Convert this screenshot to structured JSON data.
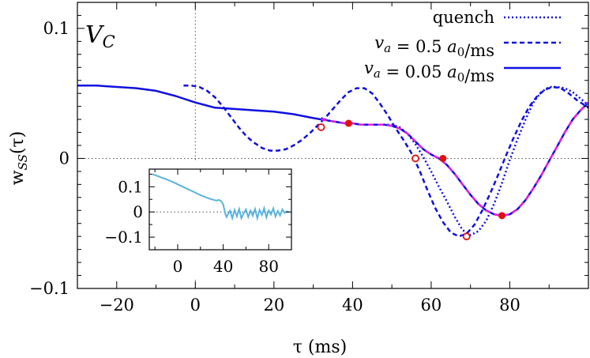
{
  "chart_data": {
    "type": "line",
    "panel_label": "V_C",
    "xlabel": "τ (ms)",
    "ylabel": "w_SS(τ)",
    "xlim": [
      -30,
      100
    ],
    "ylim": [
      -0.1,
      0.12
    ],
    "xticks": [
      -20,
      0,
      20,
      40,
      60,
      80
    ],
    "xtick_labels": [
      "−20",
      "0",
      "20",
      "40",
      "60",
      "80"
    ],
    "yticks": [
      -0.1,
      0,
      0.1
    ],
    "ytick_labels": [
      "−0.1",
      "0",
      "0.1"
    ],
    "reference_lines": {
      "x": 0,
      "y": 0,
      "style": "dotted"
    },
    "legend_position": "top-right",
    "colors": {
      "series": "#1010e0",
      "overlay": "#e020e0",
      "marker": "#e01010",
      "inset": "#5ab4e0"
    },
    "series": [
      {
        "name": "quench",
        "style": "dotted",
        "x": [
          32,
          34,
          36,
          38,
          40,
          42,
          44,
          46,
          48,
          50,
          52,
          54,
          56,
          58,
          60,
          62,
          64,
          66,
          68,
          70,
          72,
          74,
          76,
          78,
          80,
          82,
          84,
          86,
          88,
          90,
          92,
          94,
          96,
          98,
          100
        ],
        "y": [
          0.031,
          0.029,
          0.028,
          0.027,
          0.027,
          0.026,
          0.026,
          0.026,
          0.026,
          0.026,
          0.024,
          0.019,
          0.011,
          0.001,
          -0.01,
          -0.022,
          -0.033,
          -0.045,
          -0.055,
          -0.059,
          -0.056,
          -0.048,
          -0.035,
          -0.019,
          -0.001,
          0.015,
          0.03,
          0.043,
          0.051,
          0.055,
          0.055,
          0.054,
          0.051,
          0.046,
          0.041
        ]
      },
      {
        "name": "v_a = 0.5 a_0/ms",
        "style": "dashed",
        "x": [
          -3,
          -1,
          1,
          3,
          5,
          7,
          9,
          11,
          13,
          15,
          17,
          19,
          21,
          23,
          25,
          27,
          29,
          31,
          33,
          35,
          37,
          39,
          41,
          43,
          45,
          47,
          49,
          51,
          53,
          55,
          57,
          59,
          61,
          63,
          65,
          67,
          69,
          71,
          73,
          75,
          77,
          79,
          81,
          83,
          85,
          87,
          89,
          91,
          93,
          95,
          97,
          99,
          100
        ],
        "y": [
          0.056,
          0.056,
          0.055,
          0.052,
          0.047,
          0.04,
          0.032,
          0.024,
          0.017,
          0.012,
          0.008,
          0.006,
          0.006,
          0.007,
          0.01,
          0.014,
          0.019,
          0.025,
          0.031,
          0.038,
          0.045,
          0.051,
          0.054,
          0.054,
          0.05,
          0.042,
          0.033,
          0.023,
          0.014,
          0.004,
          -0.009,
          -0.024,
          -0.038,
          -0.049,
          -0.057,
          -0.06,
          -0.058,
          -0.051,
          -0.04,
          -0.027,
          -0.013,
          0.002,
          0.016,
          0.029,
          0.04,
          0.048,
          0.053,
          0.055,
          0.054,
          0.05,
          0.045,
          0.041,
          0.039
        ]
      },
      {
        "name": "v_a = 0.05 a_0/ms",
        "style": "solid",
        "x": [
          -30,
          -25,
          -20,
          -15,
          -10,
          -5,
          0,
          5,
          10,
          15,
          20,
          25,
          30,
          32,
          34,
          36,
          38,
          40,
          42,
          44,
          46,
          48,
          50,
          52,
          54,
          56,
          58,
          60,
          62,
          64,
          66,
          68,
          70,
          72,
          74,
          76,
          78,
          80,
          82,
          84,
          86,
          88,
          90,
          92,
          94,
          96,
          98,
          100
        ],
        "y": [
          0.056,
          0.056,
          0.055,
          0.054,
          0.052,
          0.048,
          0.043,
          0.039,
          0.038,
          0.037,
          0.036,
          0.034,
          0.031,
          0.03,
          0.029,
          0.028,
          0.027,
          0.027,
          0.026,
          0.026,
          0.026,
          0.026,
          0.025,
          0.023,
          0.019,
          0.013,
          0.007,
          0.003,
          0.0,
          -0.005,
          -0.012,
          -0.02,
          -0.028,
          -0.035,
          -0.04,
          -0.043,
          -0.044,
          -0.043,
          -0.039,
          -0.032,
          -0.023,
          -0.013,
          -0.002,
          0.009,
          0.02,
          0.03,
          0.037,
          0.043
        ]
      }
    ],
    "filled_markers": [
      {
        "x": 39,
        "y": 0.027
      },
      {
        "x": 63,
        "y": 0.0
      },
      {
        "x": 78,
        "y": -0.044
      }
    ],
    "open_markers": [
      {
        "x": 32,
        "y": 0.024
      },
      {
        "x": 56,
        "y": 0.0
      },
      {
        "x": 69,
        "y": -0.06
      }
    ],
    "inset": {
      "xlim": [
        -25,
        100
      ],
      "ylim": [
        -0.15,
        0.17
      ],
      "xticks": [
        0,
        40,
        80
      ],
      "xtick_labels": [
        "0",
        "40",
        "80"
      ],
      "yticks": [
        -0.1,
        0,
        0.1
      ],
      "ytick_labels": [
        "−0.1",
        "0",
        "0.1"
      ],
      "x": [
        -22,
        -18,
        -14,
        -10,
        -6,
        -2,
        2,
        6,
        10,
        14,
        18,
        22,
        26,
        30,
        34,
        36,
        38,
        40,
        41,
        42,
        43,
        44,
        46,
        48,
        50,
        52,
        54,
        56,
        58,
        60,
        62,
        64,
        66,
        68,
        70,
        72,
        74,
        76,
        78,
        80,
        82,
        84,
        86,
        88,
        90,
        92,
        94,
        96,
        98
      ],
      "y": [
        0.15,
        0.143,
        0.136,
        0.13,
        0.122,
        0.114,
        0.105,
        0.097,
        0.088,
        0.08,
        0.071,
        0.063,
        0.056,
        0.05,
        0.045,
        0.048,
        0.044,
        0.03,
        0.01,
        -0.01,
        -0.02,
        -0.01,
        0.005,
        -0.025,
        0.008,
        -0.018,
        0.012,
        -0.025,
        -0.005,
        0.01,
        -0.02,
        0.005,
        -0.015,
        0.012,
        -0.025,
        0.008,
        -0.012,
        0.015,
        -0.022,
        0.006,
        -0.01,
        0.014,
        -0.018,
        0.004,
        -0.014,
        0.01,
        -0.004,
        0.002,
        -0.002
      ]
    }
  }
}
